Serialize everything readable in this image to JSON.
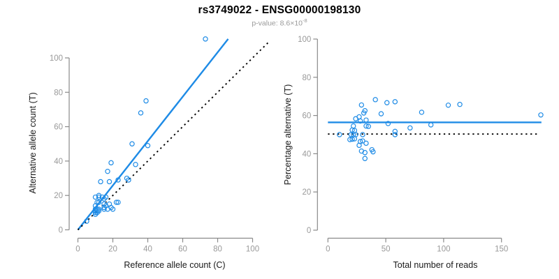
{
  "title": "rs3749022 - ENSG00000198130",
  "p_value": {
    "prefix": "p-value: ",
    "base": "8.6×10",
    "exponent": "-8"
  },
  "colors": {
    "accent_blue": "#1e8be6",
    "dotted_line": "#000000",
    "axis_gray": "#8a8a8a",
    "tick_label_gray": "#999999",
    "axis_title_dark": "#1a1a1a",
    "title_black": "#000000",
    "subtitle_gray": "#9a9a9a"
  },
  "chart_data": [
    {
      "type": "scatter",
      "xlabel": "Reference allele count (C)",
      "ylabel": "Alternative allele count (T)",
      "xlim": [
        0,
        100
      ],
      "ylim": [
        0,
        100
      ],
      "xticks": [
        0,
        20,
        40,
        60,
        80,
        100
      ],
      "yticks": [
        0,
        20,
        40,
        60,
        80,
        100
      ],
      "grid": false,
      "marker": "open-circle",
      "points": [
        [
          73,
          111
        ],
        [
          39,
          75
        ],
        [
          36,
          68
        ],
        [
          40,
          49
        ],
        [
          31,
          50
        ],
        [
          33,
          38
        ],
        [
          28,
          30
        ],
        [
          29,
          29
        ],
        [
          23,
          29
        ],
        [
          19,
          39
        ],
        [
          17,
          34
        ],
        [
          18,
          28
        ],
        [
          13,
          28
        ],
        [
          10,
          19
        ],
        [
          12,
          20
        ],
        [
          12,
          19
        ],
        [
          11,
          16
        ],
        [
          10,
          14
        ],
        [
          12,
          16
        ],
        [
          14,
          19
        ],
        [
          15,
          18
        ],
        [
          16,
          19
        ],
        [
          10,
          12
        ],
        [
          10,
          11
        ],
        [
          11,
          12
        ],
        [
          11,
          11
        ],
        [
          12,
          12
        ],
        [
          10,
          10
        ],
        [
          12,
          11
        ],
        [
          15,
          15
        ],
        [
          10,
          9
        ],
        [
          11,
          10
        ],
        [
          16,
          14
        ],
        [
          15,
          13
        ],
        [
          18,
          15
        ],
        [
          15,
          12
        ],
        [
          17,
          12
        ],
        [
          22,
          16
        ],
        [
          23,
          16
        ],
        [
          19,
          13
        ],
        [
          20,
          12
        ],
        [
          5,
          5
        ]
      ],
      "lines": [
        {
          "name": "regression-line",
          "style": "solid",
          "color_key": "accent_blue",
          "points": [
            [
              0,
              0
            ],
            [
              86,
              111
            ]
          ]
        },
        {
          "name": "identity-line",
          "style": "dotted",
          "color_key": "dotted_line",
          "points": [
            [
              0,
              0
            ],
            [
              110,
              110
            ]
          ]
        }
      ]
    },
    {
      "type": "scatter",
      "xlabel": "Total number of reads",
      "ylabel": "Percentage alternative (T)",
      "xlim": [
        0,
        150
      ],
      "ylim": [
        0,
        100
      ],
      "xticks": [
        0,
        50,
        100,
        150
      ],
      "yticks": [
        0,
        20,
        40,
        60,
        80,
        100
      ],
      "grid": false,
      "marker": "open-circle",
      "points": [
        [
          184,
          60.3
        ],
        [
          114,
          65.8
        ],
        [
          104,
          65.4
        ],
        [
          89,
          55.1
        ],
        [
          81,
          61.7
        ],
        [
          71,
          53.5
        ],
        [
          58,
          51.7
        ],
        [
          58,
          50.0
        ],
        [
          52,
          55.8
        ],
        [
          58,
          67.2
        ],
        [
          51,
          66.7
        ],
        [
          46,
          60.9
        ],
        [
          41,
          68.3
        ],
        [
          29,
          65.5
        ],
        [
          32,
          62.5
        ],
        [
          31,
          61.3
        ],
        [
          27,
          59.3
        ],
        [
          24,
          58.3
        ],
        [
          28,
          57.1
        ],
        [
          33,
          57.6
        ],
        [
          33,
          54.5
        ],
        [
          35,
          54.3
        ],
        [
          22,
          54.5
        ],
        [
          21,
          52.4
        ],
        [
          23,
          52.2
        ],
        [
          22,
          50.0
        ],
        [
          24,
          50.0
        ],
        [
          20,
          50.0
        ],
        [
          23,
          47.8
        ],
        [
          30,
          50.0
        ],
        [
          19,
          47.4
        ],
        [
          21,
          47.6
        ],
        [
          30,
          46.7
        ],
        [
          28,
          46.4
        ],
        [
          33,
          45.5
        ],
        [
          27,
          44.4
        ],
        [
          29,
          41.4
        ],
        [
          38,
          42.1
        ],
        [
          39,
          41.0
        ],
        [
          32,
          40.6
        ],
        [
          32,
          37.5
        ],
        [
          10,
          50.0
        ]
      ],
      "lines": [
        {
          "name": "mean-percentage-line",
          "style": "solid",
          "color_key": "accent_blue",
          "points": [
            [
              0,
              56.4
            ],
            [
              184.5,
              56.4
            ]
          ]
        },
        {
          "name": "fifty-percent-line",
          "style": "dotted",
          "color_key": "dotted_line",
          "points": [
            [
              0,
              50.3
            ],
            [
              182,
              50.3
            ]
          ]
        }
      ]
    }
  ]
}
